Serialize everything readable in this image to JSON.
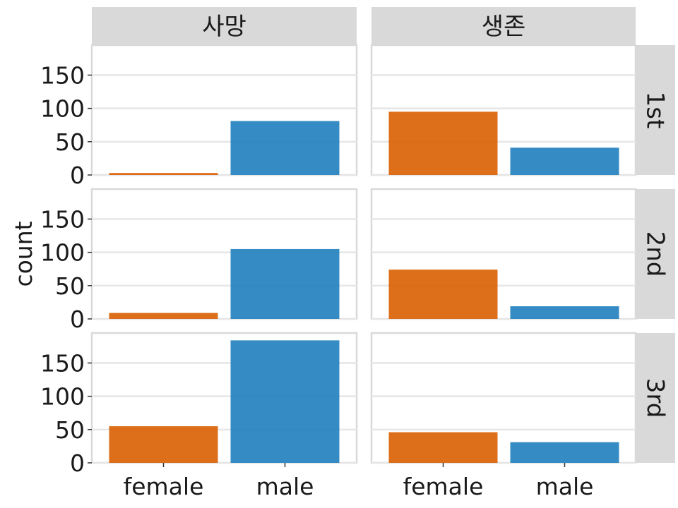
{
  "chart_data": {
    "type": "bar",
    "facet_cols": [
      "사망",
      "생존"
    ],
    "facet_rows": [
      "1st",
      "2nd",
      "3rd"
    ],
    "categories": [
      "female",
      "male"
    ],
    "colors": {
      "female": "#d95f02",
      "male": "#1f7fbf"
    },
    "bar_opacity": 0.9,
    "ylabel": "count",
    "xlabel": "",
    "ylim": [
      0,
      195
    ],
    "yticks": [
      0,
      50,
      100,
      150
    ],
    "grid": true,
    "legend": "none",
    "panels": [
      {
        "col": "사망",
        "row": "1st",
        "values": [
          3,
          81
        ]
      },
      {
        "col": "생존",
        "row": "1st",
        "values": [
          95,
          41
        ]
      },
      {
        "col": "사망",
        "row": "2nd",
        "values": [
          9,
          105
        ]
      },
      {
        "col": "생존",
        "row": "2nd",
        "values": [
          74,
          19
        ]
      },
      {
        "col": "사망",
        "row": "3rd",
        "values": [
          55,
          184
        ]
      },
      {
        "col": "생존",
        "row": "3rd",
        "values": [
          46,
          31
        ]
      }
    ]
  }
}
